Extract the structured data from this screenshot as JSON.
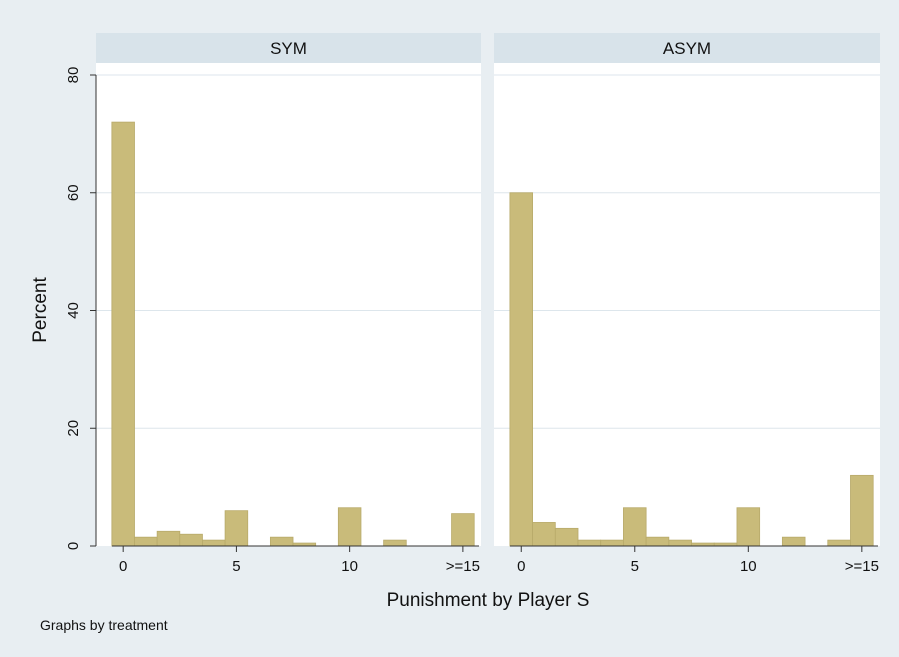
{
  "chart_data": {
    "type": "bar",
    "xlabel": "Punishment by Player S",
    "ylabel": "Percent",
    "note": "Graphs by treatment",
    "ylim": [
      0,
      80
    ],
    "yticks": [
      0,
      20,
      40,
      60,
      80
    ],
    "xlim": [
      -1.2,
      15.8
    ],
    "xticks": [
      {
        "value": 0,
        "label": "0"
      },
      {
        "value": 5,
        "label": "5"
      },
      {
        "value": 10,
        "label": "10"
      },
      {
        "value": 15,
        "label": ">=15"
      }
    ],
    "bin_width": 1,
    "colors": {
      "bar": "#c9bb7a",
      "bar_edge": "#b8aa6a",
      "strip": "#d8e3ea",
      "plot_bg": "#ffffff",
      "grid": "#dde6ec"
    },
    "panels": [
      {
        "title": "SYM",
        "x": [
          0,
          1,
          2,
          3,
          4,
          5,
          6,
          7,
          8,
          9,
          10,
          11,
          12,
          13,
          14,
          15
        ],
        "values": [
          72,
          1.5,
          2.5,
          2.0,
          1.0,
          6,
          0,
          1.5,
          0.5,
          0,
          6.5,
          0,
          1.0,
          0,
          0,
          5.5
        ]
      },
      {
        "title": "ASYM",
        "x": [
          0,
          1,
          2,
          3,
          4,
          5,
          6,
          7,
          8,
          9,
          10,
          11,
          12,
          13,
          14,
          15
        ],
        "values": [
          60,
          4,
          3,
          1.0,
          1.0,
          6.5,
          1.5,
          1.0,
          0.5,
          0.5,
          6.5,
          0,
          1.5,
          0,
          1.0,
          12
        ]
      }
    ]
  }
}
